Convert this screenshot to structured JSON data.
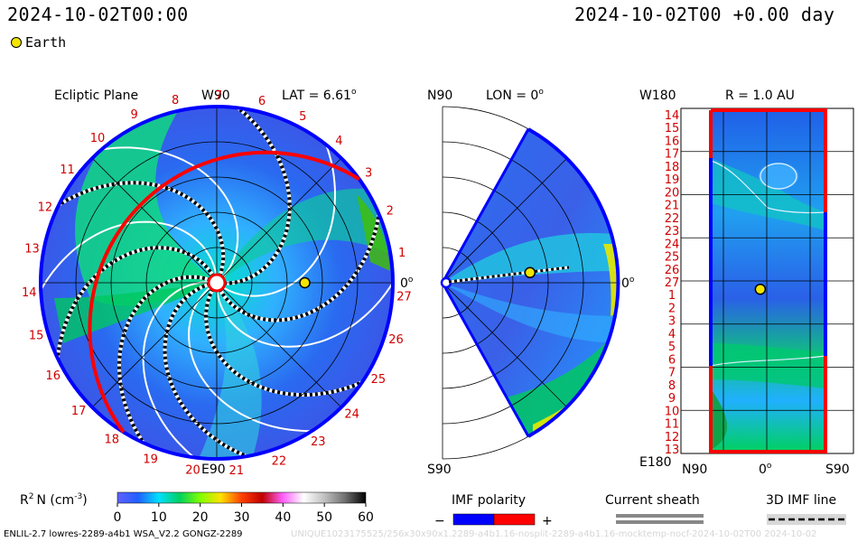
{
  "header": {
    "title_left": "2024-10-02T00:00",
    "title_right": "2024-10-02T00 +0.00 day"
  },
  "legend": {
    "earth_label": "Earth"
  },
  "chart_data": [
    {
      "type": "heatmap",
      "title": "Ecliptic Plane",
      "lat_label": "LAT = 6.61",
      "degree_symbol": "o",
      "top_label": "W90",
      "bottom_label": "E90",
      "right_label": "0",
      "carrington_ticks": [
        "1",
        "2",
        "3",
        "4",
        "5",
        "6",
        "7",
        "8",
        "9",
        "10",
        "11",
        "12",
        "13",
        "14",
        "15",
        "16",
        "17",
        "18",
        "19",
        "20",
        "21",
        "22",
        "23",
        "24",
        "25",
        "26",
        "27"
      ],
      "earth": {
        "r_au": 0.5,
        "angle_deg": 0
      }
    },
    {
      "type": "heatmap",
      "title": "LON = 0",
      "degree_symbol": "o",
      "top_label": "N90",
      "bottom_label": "S90",
      "right_label": "0",
      "earth": {
        "r_au": 0.5,
        "lat_deg": 6.61
      }
    },
    {
      "type": "heatmap",
      "title": "R = 1.0 AU",
      "top_label": "W180",
      "bottom_label": "E180",
      "x_tick_labels": [
        "N90",
        "0",
        "S90"
      ],
      "degree_symbol": "o",
      "y_tick_labels": [
        "14",
        "15",
        "16",
        "17",
        "18",
        "19",
        "20",
        "21",
        "22",
        "23",
        "24",
        "25",
        "26",
        "27",
        "1",
        "2",
        "3",
        "4",
        "5",
        "6",
        "7",
        "8",
        "9",
        "10",
        "11",
        "12",
        "13"
      ],
      "earth": {
        "lat_deg": 6.61,
        "lon_deg": 0
      }
    }
  ],
  "colorbar": {
    "label": "R",
    "label_sup": "2",
    "label_unit": "N (cm",
    "label_unit_sup": "-3",
    "label_close": ")",
    "ticks": [
      "0",
      "10",
      "20",
      "30",
      "40",
      "50",
      "60"
    ],
    "range": [
      0,
      60
    ],
    "stops": [
      "#6060ff",
      "#2060ff",
      "#00e0ff",
      "#00d060",
      "#80ff00",
      "#ffe000",
      "#ff4000",
      "#c00000",
      "#ff60ff",
      "#ffffff",
      "#c0c0c0",
      "#707070",
      "#000000"
    ]
  },
  "imf_polarity": {
    "title": "IMF polarity",
    "minus": "−",
    "plus": "+",
    "neg_color": "#0000ff",
    "pos_color": "#ff0000"
  },
  "current_sheath": {
    "title": "Current sheath"
  },
  "imf_line": {
    "title": "3D IMF line"
  },
  "footer": {
    "left": "ENLIL-2.7 lowres-2289-a4b1 WSA_V2.2 GONGZ-2289",
    "right": "UNIQUE1023175525/256x30x90x1.2289-a4b1.16-nosplit-2289-a4b1.16-mocktemp-nocf-2024-10-02T00 2024-10-02"
  }
}
